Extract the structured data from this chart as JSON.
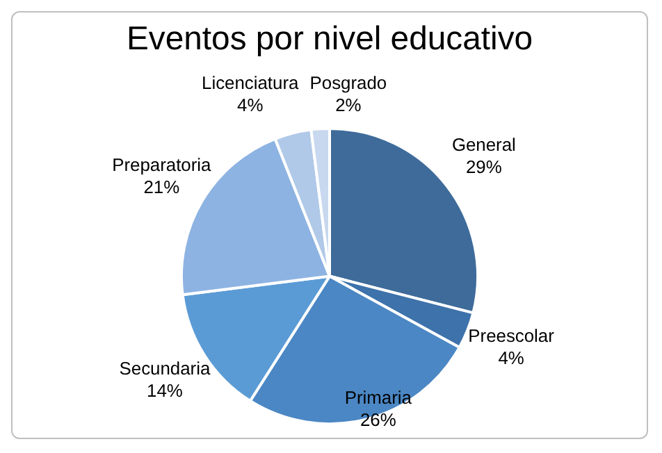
{
  "chart_data": {
    "type": "pie",
    "title": "Eventos por nivel educativo",
    "categories": [
      "General",
      "Preescolar",
      "Primaria",
      "Secundaria",
      "Preparatoria",
      "Licenciatura",
      "Posgrado"
    ],
    "values": [
      29,
      4,
      26,
      14,
      21,
      4,
      2
    ],
    "value_labels": [
      "29%",
      "4%",
      "26%",
      "14%",
      "21%",
      "4%",
      "2%"
    ],
    "colors": [
      "#3e6b9a",
      "#3d72ab",
      "#4b87c4",
      "#5b9bd5",
      "#8db3e2",
      "#b1c9e8",
      "#c8d8ee"
    ],
    "legend": false
  }
}
